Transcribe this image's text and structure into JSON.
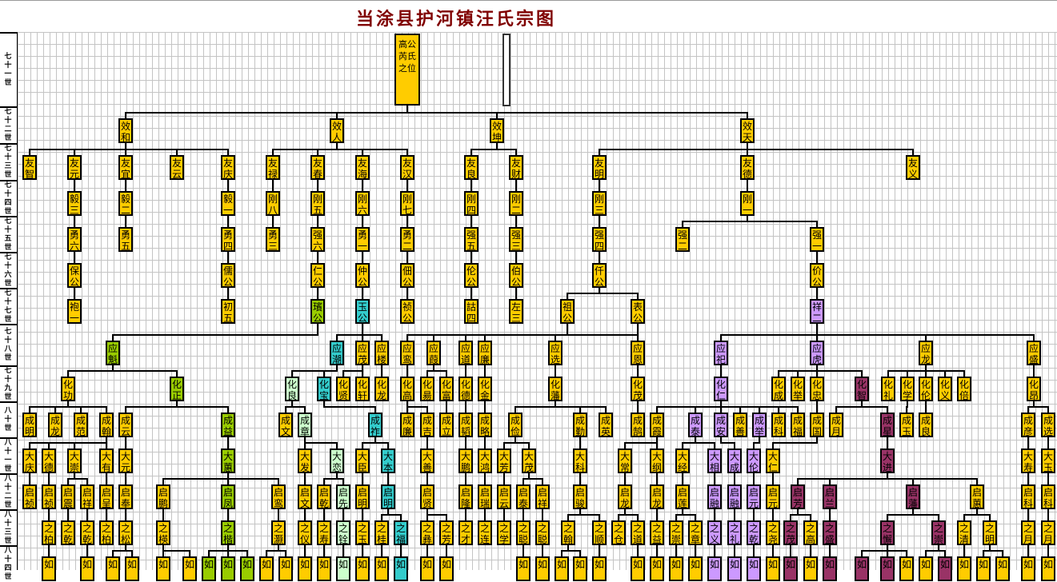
{
  "title": "当涂县护河镇汪氏宗图",
  "palette": {
    "Y": "#FFCC00",
    "G": "#99CC00",
    "T": "#33CCCC",
    "L": "#CCFFCC",
    "P": "#CC99FF",
    "M": "#993366"
  },
  "generations": [
    {
      "label": "七十一世",
      "members": [
        [
          "高公芮氏之位",
          "Y",
          null
        ]
      ]
    },
    {
      "label": "七十二世",
      "members": [
        [
          "效和",
          "Y",
          0
        ],
        [
          "效人",
          "Y",
          0
        ],
        [
          "效坤",
          "Y",
          0
        ],
        [
          "效天",
          "Y",
          0
        ]
      ]
    },
    {
      "label": "七十三世",
      "members": [
        [
          "友智",
          "Y",
          0
        ],
        [
          "友元",
          "Y",
          0
        ],
        [
          "友宜",
          "Y",
          0
        ],
        [
          "友云",
          "Y",
          0
        ],
        [
          "友庆",
          "Y",
          0
        ],
        [
          "友禄",
          "Y",
          1
        ],
        [
          "友春",
          "Y",
          1
        ],
        [
          "友海",
          "Y",
          1
        ],
        [
          "友汉",
          "Y",
          1
        ],
        [
          "友良",
          "Y",
          2
        ],
        [
          "友财",
          "Y",
          2
        ],
        [
          "友明",
          "Y",
          3
        ],
        [
          "友德",
          "Y",
          3
        ],
        [
          "友义",
          "Y",
          3
        ]
      ]
    },
    {
      "label": "七十四世",
      "members": [
        [
          "毅三",
          "Y",
          1
        ],
        [
          "毅二",
          "Y",
          2
        ],
        [
          "毅一",
          "Y",
          4
        ],
        [
          "刚八",
          "Y",
          5
        ],
        [
          "刚五",
          "Y",
          6
        ],
        [
          "刚六",
          "Y",
          7
        ],
        [
          "刚七",
          "Y",
          8
        ],
        [
          "刚四",
          "Y",
          9
        ],
        [
          "刚二",
          "Y",
          10
        ],
        [
          "刚三",
          "Y",
          11
        ],
        [
          "刚一",
          "Y",
          12
        ]
      ]
    },
    {
      "label": "七十五世",
      "members": [
        [
          "勇六",
          "Y",
          0
        ],
        [
          "勇五",
          "Y",
          1
        ],
        [
          "勇四",
          "Y",
          2
        ],
        [
          "勇三",
          "Y",
          3
        ],
        [
          "强六",
          "Y",
          4
        ],
        [
          "勇一",
          "Y",
          5
        ],
        [
          "勇二",
          "Y",
          6
        ],
        [
          "强五",
          "Y",
          7
        ],
        [
          "强三",
          "Y",
          8
        ],
        [
          "强四",
          "Y",
          9
        ],
        [
          "强二",
          "Y",
          10
        ],
        [
          "强一",
          "Y",
          10
        ]
      ]
    },
    {
      "label": "七十六世",
      "members": [
        [
          "保公",
          "Y",
          0
        ],
        [
          "儒公",
          "Y",
          2
        ],
        [
          "仁公",
          "Y",
          4
        ],
        [
          "仲公",
          "Y",
          5
        ],
        [
          "佃公",
          "Y",
          6
        ],
        [
          "伦公",
          "Y",
          7
        ],
        [
          "伯公",
          "Y",
          8
        ],
        [
          "仟公",
          "Y",
          9
        ],
        [
          "价公",
          "Y",
          11
        ]
      ]
    },
    {
      "label": "七十七世",
      "members": [
        [
          "袍一",
          "Y",
          0
        ],
        [
          "初五",
          "Y",
          1
        ],
        [
          "璸公",
          "G",
          2
        ],
        [
          "玉公",
          "T",
          3
        ],
        [
          "祯公",
          "Y",
          4
        ],
        [
          "詁四",
          "Y",
          5
        ],
        [
          "左三",
          "Y",
          6
        ],
        [
          "祖公",
          "Y",
          7
        ],
        [
          "表公",
          "Y",
          7
        ],
        [
          "祥二",
          "P",
          8
        ]
      ]
    },
    {
      "label": "七十八世",
      "members": [
        [
          "应魁",
          "G",
          2
        ],
        [
          "应潮",
          "T",
          3
        ],
        [
          "应茂",
          "Y",
          3
        ],
        [
          "应楼",
          "Y",
          3
        ],
        [
          "应鸾",
          "Y",
          7
        ],
        [
          "应葭",
          "Y",
          7
        ],
        [
          "应道",
          "Y",
          8
        ],
        [
          "应廉",
          "Y",
          8
        ],
        [
          "应选",
          "Y",
          8
        ],
        [
          "应恩",
          "Y",
          8
        ],
        [
          "应祀",
          "P",
          9
        ],
        [
          "应虎",
          "P",
          9
        ],
        [
          "应龙",
          "Y",
          9
        ],
        [
          "应盛",
          "Y",
          9
        ]
      ]
    },
    {
      "label": "七十九世",
      "members": [
        [
          "化功",
          "Y",
          0
        ],
        [
          "化正",
          "G",
          0
        ],
        [
          "化良",
          "L",
          1
        ],
        [
          "化宝",
          "T",
          1
        ],
        [
          "化贤",
          "Y",
          2
        ],
        [
          "化轩",
          "Y",
          2
        ],
        [
          "化龙",
          "Y",
          3
        ],
        [
          "化高",
          "Y",
          4
        ],
        [
          "化昜",
          "Y",
          5
        ],
        [
          "化富",
          "Y",
          5
        ],
        [
          "化德",
          "Y",
          6
        ],
        [
          "化金",
          "Y",
          7
        ],
        [
          "化藩",
          "Y",
          8
        ],
        [
          "化茂",
          "Y",
          9
        ],
        [
          "化仁",
          "P",
          10
        ],
        [
          "化成",
          "Y",
          11
        ],
        [
          "化举",
          "Y",
          11
        ],
        [
          "化忠",
          "Y",
          11
        ],
        [
          "化智",
          "M",
          11
        ],
        [
          "化礼",
          "Y",
          12
        ],
        [
          "化学",
          "Y",
          12
        ],
        [
          "化伦",
          "Y",
          12
        ],
        [
          "化义",
          "Y",
          12
        ],
        [
          "化倍",
          "Y",
          12
        ],
        [
          "化昂",
          "Y",
          13
        ]
      ]
    },
    {
      "label": "八十世",
      "members": [
        [
          "成明",
          "Y",
          0
        ],
        [
          "成龙",
          "Y",
          0
        ],
        [
          "成范",
          "Y",
          0
        ],
        [
          "成翰",
          "Y",
          0
        ],
        [
          "成云",
          "Y",
          1
        ],
        [
          "成益",
          "G",
          1
        ],
        [
          "成文",
          "Y",
          2
        ],
        [
          "成章",
          "L",
          2
        ],
        [
          "成祚",
          "T",
          3
        ],
        [
          "成廉",
          "Y",
          7
        ],
        [
          "成吉",
          "Y",
          7
        ],
        [
          "成立",
          "Y",
          9
        ],
        [
          "成韬",
          "Y",
          10
        ],
        [
          "成略",
          "Y",
          11
        ],
        [
          "成俭",
          "Y",
          12
        ],
        [
          "成勤",
          "Y",
          12
        ],
        [
          "成英",
          "Y",
          12
        ],
        [
          "成鹄",
          "Y",
          13
        ],
        [
          "成霞",
          "Y",
          14
        ],
        [
          "成泰",
          "P",
          14
        ],
        [
          "成安",
          "P",
          14
        ],
        [
          "成善",
          "Y",
          14
        ],
        [
          "成举",
          "P",
          14
        ],
        [
          "成科",
          "Y",
          14
        ],
        [
          "成福",
          "Y",
          14
        ],
        [
          "成国",
          "Y",
          17
        ],
        [
          "成月",
          "Y",
          18
        ],
        [
          "成星",
          "M",
          18
        ],
        [
          "成玉",
          "Y",
          20
        ],
        [
          "成良",
          "Y",
          21
        ],
        [
          "成彦",
          "Y",
          24
        ],
        [
          "成选",
          "Y",
          24
        ]
      ]
    },
    {
      "label": "八十一世",
      "members": [
        [
          "大庆",
          "Y",
          3
        ],
        [
          "大德",
          "Y",
          3
        ],
        [
          "大崇",
          "Y",
          3
        ],
        [
          "大有",
          "Y",
          3
        ],
        [
          "大元",
          "Y",
          4
        ],
        [
          "大蕙",
          "G",
          5
        ],
        [
          "大发",
          "Y",
          7
        ],
        [
          "大恋",
          "L",
          7
        ],
        [
          "大臣",
          "Y",
          8
        ],
        [
          "大本",
          "T",
          8
        ],
        [
          "大善",
          "Y",
          10
        ],
        [
          "大鹏",
          "Y",
          12
        ],
        [
          "大鸿",
          "Y",
          13
        ],
        [
          "大芳",
          "Y",
          14
        ],
        [
          "大茂",
          "Y",
          14
        ],
        [
          "大科",
          "Y",
          15
        ],
        [
          "大常",
          "Y",
          18
        ],
        [
          "大纲",
          "Y",
          18
        ],
        [
          "大经",
          "Y",
          19
        ],
        [
          "大相",
          "P",
          19
        ],
        [
          "大成",
          "P",
          20
        ],
        [
          "大伦",
          "P",
          22
        ],
        [
          "大仁",
          "Y",
          25
        ],
        [
          "大进",
          "M",
          27
        ],
        [
          "大寿",
          "Y",
          30
        ],
        [
          "大玉",
          "Y",
          31
        ]
      ]
    },
    {
      "label": "八十二世",
      "members": [
        [
          "启祯",
          "Y",
          0
        ],
        [
          "启祯",
          "Y",
          1
        ],
        [
          "启震",
          "Y",
          2
        ],
        [
          "启祥",
          "Y",
          2
        ],
        [
          "启呈",
          "Y",
          3
        ],
        [
          "启奉",
          "Y",
          4
        ],
        [
          "启鹏",
          "Y",
          5
        ],
        [
          "启凤",
          "G",
          5
        ],
        [
          "启鸾",
          "Y",
          5
        ],
        [
          "启文",
          "Y",
          6
        ],
        [
          "启乾",
          "Y",
          7
        ],
        [
          "启先",
          "L",
          7
        ],
        [
          "启明",
          "Y",
          8
        ],
        [
          "启明",
          "T",
          9
        ],
        [
          "启贤",
          "Y",
          10
        ],
        [
          "启隆",
          "Y",
          11
        ],
        [
          "启瑞",
          "Y",
          12
        ],
        [
          "启云",
          "Y",
          13
        ],
        [
          "启泰",
          "Y",
          14
        ],
        [
          "启祥",
          "Y",
          14
        ],
        [
          "启骏",
          "Y",
          15
        ],
        [
          "启龙",
          "Y",
          16
        ],
        [
          "启龙",
          "Y",
          17
        ],
        [
          "启莲",
          "Y",
          18
        ],
        [
          "启融",
          "P",
          19
        ],
        [
          "启融",
          "P",
          20
        ],
        [
          "启元",
          "P",
          21
        ],
        [
          "启元",
          "Y",
          22
        ],
        [
          "启芳",
          "M",
          23
        ],
        [
          "启兰",
          "M",
          23
        ],
        [
          "启藩",
          "M",
          23
        ],
        [
          "启蕙",
          "Y",
          23
        ],
        [
          "启科",
          "Y",
          24
        ],
        [
          "启科",
          "Y",
          25
        ]
      ]
    },
    {
      "label": "八十三世",
      "members": [
        [
          "之柏",
          "Y",
          1
        ],
        [
          "之乾",
          "Y",
          2
        ],
        [
          "之乾",
          "Y",
          3
        ],
        [
          "之柏",
          "Y",
          4
        ],
        [
          "之松",
          "Y",
          5
        ],
        [
          "之楧",
          "Y",
          6
        ],
        [
          "之楷",
          "G",
          7
        ],
        [
          "之灏",
          "Y",
          8
        ],
        [
          "之仪",
          "Y",
          9
        ],
        [
          "之寿",
          "Y",
          10
        ],
        [
          "之铨",
          "L",
          11
        ],
        [
          "之玉",
          "Y",
          12
        ],
        [
          "之桂",
          "Y",
          13
        ],
        [
          "之福",
          "T",
          13
        ],
        [
          "之彝",
          "Y",
          14
        ],
        [
          "之芳",
          "Y",
          14
        ],
        [
          "之才",
          "Y",
          15
        ],
        [
          "之连",
          "Y",
          16
        ],
        [
          "之学",
          "Y",
          17
        ],
        [
          "之聪",
          "Y",
          18
        ],
        [
          "之聪",
          "Y",
          19
        ],
        [
          "之翰",
          "Y",
          20
        ],
        [
          "之顺",
          "Y",
          20
        ],
        [
          "之仓",
          "Y",
          21
        ],
        [
          "之道",
          "Y",
          21
        ],
        [
          "之益",
          "Y",
          22
        ],
        [
          "之崇",
          "Y",
          23
        ],
        [
          "之章",
          "Y",
          23
        ],
        [
          "之义",
          "P",
          24
        ],
        [
          "之礼",
          "P",
          25
        ],
        [
          "之乾",
          "P",
          26
        ],
        [
          "之尧",
          "Y",
          27
        ],
        [
          "之茂",
          "M",
          28
        ],
        [
          "之高",
          "Y",
          28
        ],
        [
          "之盛",
          "M",
          29
        ],
        [
          "之懈",
          "M",
          30
        ],
        [
          "之崇",
          "M",
          30
        ],
        [
          "之清",
          "Y",
          31
        ],
        [
          "之明",
          "Y",
          31
        ],
        [
          "之月",
          "Y",
          32
        ],
        [
          "之月",
          "Y",
          33
        ]
      ]
    },
    {
      "label": "八十四世",
      "members": [
        [
          "如",
          "Y",
          0
        ],
        [
          "如",
          "Y",
          2
        ],
        [
          "如",
          "Y",
          4
        ],
        [
          "如",
          "Y",
          4
        ],
        [
          "如",
          "Y",
          5
        ],
        [
          "如",
          "Y",
          5
        ],
        [
          "如",
          "G",
          6
        ],
        [
          "如",
          "G",
          6
        ],
        [
          "如",
          "G",
          6
        ],
        [
          "如",
          "Y",
          7
        ],
        [
          "如",
          "Y",
          7
        ],
        [
          "如",
          "Y",
          8
        ],
        [
          "如",
          "Y",
          9
        ],
        [
          "如",
          "L",
          10
        ],
        [
          "如",
          "Y",
          11
        ],
        [
          "如",
          "Y",
          12
        ],
        [
          "如",
          "T",
          13
        ],
        [
          "如",
          "Y",
          14
        ],
        [
          "如",
          "Y",
          15
        ],
        [
          "如",
          "Y",
          19
        ],
        [
          "如",
          "Y",
          20
        ],
        [
          "如",
          "Y",
          21
        ],
        [
          "如",
          "Y",
          21
        ],
        [
          "如",
          "Y",
          22
        ],
        [
          "如",
          "Y",
          24
        ],
        [
          "如",
          "Y",
          25
        ],
        [
          "如",
          "Y",
          26
        ],
        [
          "如",
          "Y",
          27
        ],
        [
          "如",
          "P",
          28
        ],
        [
          "如",
          "P",
          29
        ],
        [
          "如",
          "P",
          30
        ],
        [
          "如",
          "Y",
          31
        ],
        [
          "如",
          "M",
          32
        ],
        [
          "如",
          "Y",
          33
        ],
        [
          "如",
          "M",
          34
        ],
        [
          "如",
          "M",
          35
        ],
        [
          "如",
          "M",
          35
        ],
        [
          "如",
          "Y",
          35
        ],
        [
          "如",
          "Y",
          36
        ],
        [
          "如",
          "M",
          36
        ],
        [
          "如",
          "Y",
          37
        ],
        [
          "如",
          "Y",
          38
        ],
        [
          "如",
          "Y",
          38
        ],
        [
          "如",
          "Y",
          39
        ],
        [
          "如",
          "Y",
          40
        ]
      ]
    }
  ]
}
